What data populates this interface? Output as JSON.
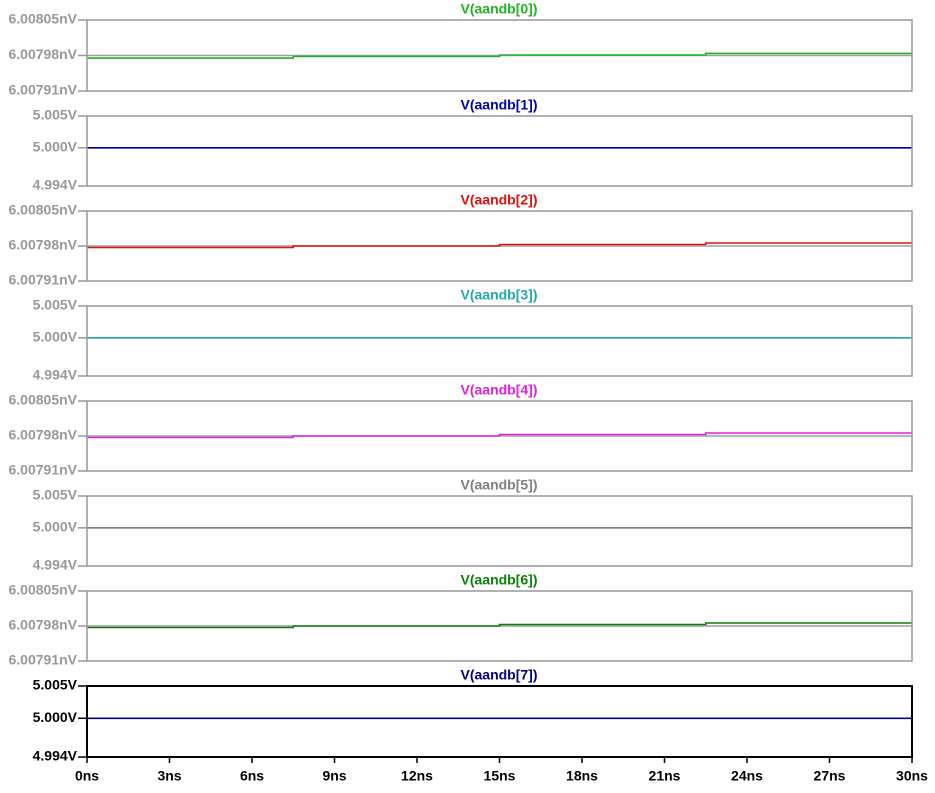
{
  "chart_data": [
    {
      "type": "line",
      "title": "V(aandb[0])",
      "color": "#21b321",
      "x": [
        0,
        7.5,
        7.5,
        15,
        15,
        22.5,
        22.5,
        30
      ],
      "values": [
        6.007975,
        6.007975,
        6.007978,
        6.007978,
        6.007981,
        6.007981,
        6.007984,
        6.007984
      ],
      "xlim": [
        0,
        30
      ],
      "ylim": [
        6.00791,
        6.00805
      ],
      "yticks": [
        {
          "value": 6.00791,
          "label": "6.00791nV"
        },
        {
          "value": 6.00798,
          "label": "6.00798nV"
        },
        {
          "value": 6.00805,
          "label": "6.00805nV"
        }
      ]
    },
    {
      "type": "line",
      "title": "V(aandb[1])",
      "color": "#0000a8",
      "x": [
        0,
        30
      ],
      "values": [
        5,
        5
      ],
      "xlim": [
        0,
        30
      ],
      "ylim": [
        4.994,
        5.005
      ],
      "yticks": [
        {
          "value": 4.994,
          "label": "4.994V"
        },
        {
          "value": 5,
          "label": "5.000V"
        },
        {
          "value": 5.005,
          "label": "5.005V"
        }
      ]
    },
    {
      "type": "line",
      "title": "V(aandb[2])",
      "color": "#dd1111",
      "x": [
        0,
        7.5,
        7.5,
        15,
        15,
        22.5,
        22.5,
        30
      ],
      "values": [
        6.007977,
        6.007977,
        6.00798,
        6.00798,
        6.007983,
        6.007983,
        6.007986,
        6.007986
      ],
      "xlim": [
        0,
        30
      ],
      "ylim": [
        6.00791,
        6.00805
      ],
      "yticks": [
        {
          "value": 6.00791,
          "label": "6.00791nV"
        },
        {
          "value": 6.00798,
          "label": "6.00798nV"
        },
        {
          "value": 6.00805,
          "label": "6.00805nV"
        }
      ]
    },
    {
      "type": "line",
      "title": "V(aandb[3])",
      "color": "#22aaaa",
      "x": [
        0,
        30
      ],
      "values": [
        5,
        5
      ],
      "xlim": [
        0,
        30
      ],
      "ylim": [
        4.994,
        5.005
      ],
      "yticks": [
        {
          "value": 4.994,
          "label": "4.994V"
        },
        {
          "value": 5,
          "label": "5.000V"
        },
        {
          "value": 5.005,
          "label": "5.005V"
        }
      ]
    },
    {
      "type": "line",
      "title": "V(aandb[4])",
      "color": "#dd22dd",
      "x": [
        0,
        7.5,
        7.5,
        15,
        15,
        22.5,
        22.5,
        30
      ],
      "values": [
        6.007977,
        6.007977,
        6.00798,
        6.00798,
        6.007983,
        6.007983,
        6.007986,
        6.007986
      ],
      "xlim": [
        0,
        30
      ],
      "ylim": [
        6.00791,
        6.00805
      ],
      "yticks": [
        {
          "value": 6.00791,
          "label": "6.00791nV"
        },
        {
          "value": 6.00798,
          "label": "6.00798nV"
        },
        {
          "value": 6.00805,
          "label": "6.00805nV"
        }
      ]
    },
    {
      "type": "line",
      "title": "V(aandb[5])",
      "color": "#808080",
      "x": [
        0,
        30
      ],
      "values": [
        5,
        5
      ],
      "xlim": [
        0,
        30
      ],
      "ylim": [
        4.994,
        5.005
      ],
      "yticks": [
        {
          "value": 4.994,
          "label": "4.994V"
        },
        {
          "value": 5,
          "label": "5.000V"
        },
        {
          "value": 5.005,
          "label": "5.005V"
        }
      ]
    },
    {
      "type": "line",
      "title": "V(aandb[6])",
      "color": "#0a800a",
      "x": [
        0,
        7.5,
        7.5,
        15,
        15,
        22.5,
        22.5,
        30
      ],
      "values": [
        6.007977,
        6.007977,
        6.00798,
        6.00798,
        6.007983,
        6.007983,
        6.007986,
        6.007986
      ],
      "xlim": [
        0,
        30
      ],
      "ylim": [
        6.00791,
        6.00805
      ],
      "yticks": [
        {
          "value": 6.00791,
          "label": "6.00791nV"
        },
        {
          "value": 6.00798,
          "label": "6.00798nV"
        },
        {
          "value": 6.00805,
          "label": "6.00805nV"
        }
      ]
    },
    {
      "type": "line",
      "title": "V(aandb[7])",
      "color": "#000080",
      "x": [
        0,
        30
      ],
      "values": [
        5,
        5
      ],
      "xlim": [
        0,
        30
      ],
      "ylim": [
        4.994,
        5.005
      ],
      "yticks": [
        {
          "value": 4.994,
          "label": "4.994V"
        },
        {
          "value": 5,
          "label": "5.000V"
        },
        {
          "value": 5.005,
          "label": "5.005V"
        }
      ],
      "xticks": [
        {
          "value": 0,
          "label": "0ns"
        },
        {
          "value": 3,
          "label": "3ns"
        },
        {
          "value": 6,
          "label": "6ns"
        },
        {
          "value": 9,
          "label": "9ns"
        },
        {
          "value": 12,
          "label": "12ns"
        },
        {
          "value": 15,
          "label": "15ns"
        },
        {
          "value": 18,
          "label": "18ns"
        },
        {
          "value": 21,
          "label": "21ns"
        },
        {
          "value": 24,
          "label": "24ns"
        },
        {
          "value": 27,
          "label": "27ns"
        },
        {
          "value": 30,
          "label": "30ns"
        }
      ]
    }
  ]
}
